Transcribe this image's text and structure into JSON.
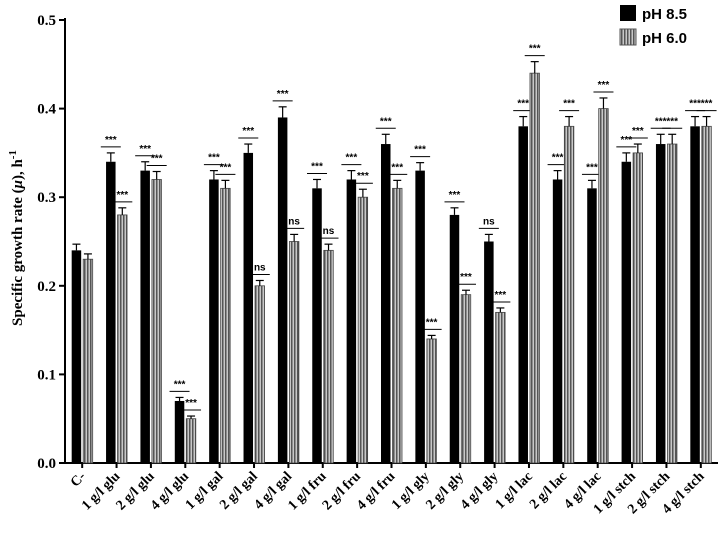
{
  "chart_data": {
    "type": "bar",
    "title": "",
    "xlabel": "",
    "ylabel": "Specific growth rate (μ), h⁻¹",
    "ylabel_parts": {
      "main": "Specific growth rate (",
      "symbol": "μ",
      "tail": "), h",
      "exp": "-1"
    },
    "ylim": [
      0,
      0.5
    ],
    "yticks": [
      "0.0",
      "0.1",
      "0.2",
      "0.3",
      "0.4",
      "0.5"
    ],
    "grid": false,
    "legend_position": "top-right",
    "categories": [
      "C-",
      "1 g/l glu",
      "2 g/l glu",
      "4 g/l glu",
      "1 g/l gal",
      "2 g/l gal",
      "4 g/l gal",
      "1 g/l fru",
      "2 g/l fru",
      "4 g/l fru",
      "1 g/l gly",
      "2 g/l gly",
      "4 g/l gly",
      "1 g/l lac",
      "2 g/l lac",
      "4 g/l lac",
      "1 g/l stch",
      "2 g/l stch",
      "4 g/l stch"
    ],
    "series": [
      {
        "name": "pH 8.5",
        "color": "#000000",
        "pattern": "solid",
        "values": [
          0.24,
          0.34,
          0.33,
          0.07,
          0.32,
          0.35,
          0.39,
          0.31,
          0.32,
          0.36,
          0.33,
          0.28,
          0.25,
          0.38,
          0.32,
          0.31,
          0.34,
          0.36,
          0.38
        ],
        "errors": [
          0.007,
          0.01,
          0.01,
          0.004,
          0.01,
          0.01,
          0.012,
          0.01,
          0.01,
          0.011,
          0.009,
          0.008,
          0.008,
          0.011,
          0.01,
          0.009,
          0.01,
          0.011,
          0.011
        ],
        "significance": [
          "",
          "***",
          "***",
          "***",
          "***",
          "***",
          "***",
          "***",
          "***",
          "***",
          "***",
          "***",
          "ns",
          "***",
          "***",
          "***",
          "***",
          "***",
          "***"
        ]
      },
      {
        "name": "pH 6.0",
        "color": "#9a9a9a",
        "pattern": "vertical-stripes",
        "values": [
          0.23,
          0.28,
          0.32,
          0.05,
          0.31,
          0.2,
          0.25,
          0.24,
          0.3,
          0.31,
          0.14,
          0.19,
          0.17,
          0.44,
          0.38,
          0.4,
          0.35,
          0.36,
          0.38
        ],
        "errors": [
          0.006,
          0.008,
          0.009,
          0.003,
          0.009,
          0.006,
          0.008,
          0.007,
          0.009,
          0.009,
          0.004,
          0.005,
          0.005,
          0.013,
          0.011,
          0.012,
          0.01,
          0.011,
          0.011
        ],
        "significance": [
          "",
          "***",
          "***",
          "***",
          "***",
          "ns",
          "ns",
          "ns",
          "***",
          "***",
          "***",
          "***",
          "***",
          "***",
          "***",
          "***",
          "***",
          "***",
          "***"
        ]
      }
    ]
  }
}
